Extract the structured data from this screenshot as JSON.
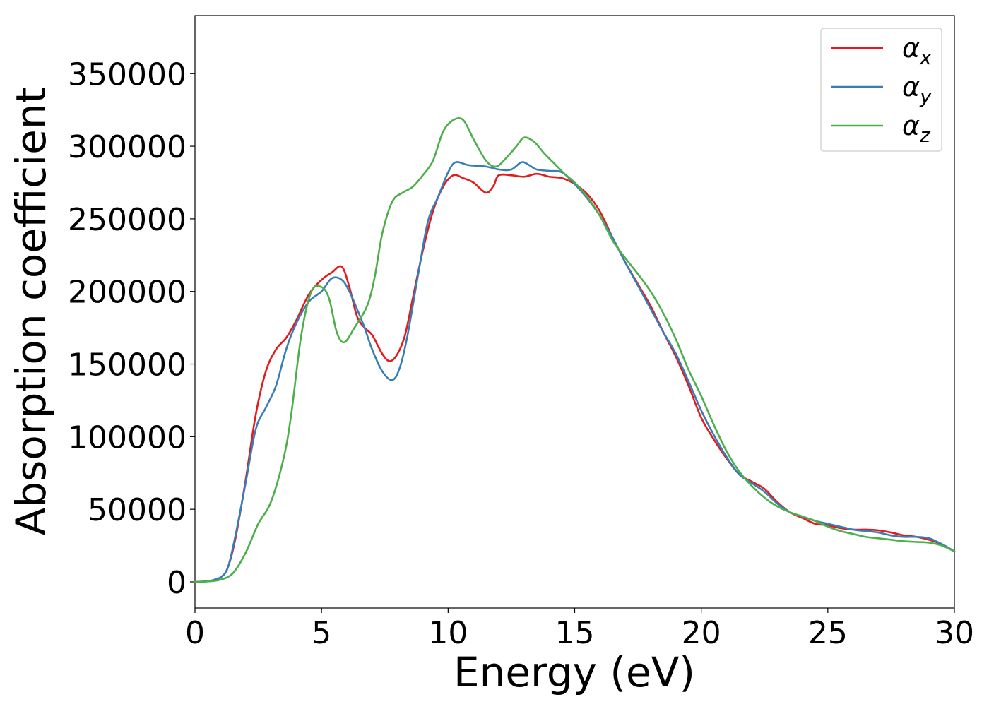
{
  "chart_data": {
    "type": "line",
    "title": "",
    "xlabel": "Energy (eV)",
    "ylabel": "Absorption coefficient",
    "xlim": [
      0,
      30
    ],
    "ylim": [
      -18000,
      390000
    ],
    "xticks": [
      0,
      5,
      10,
      15,
      20,
      25,
      30
    ],
    "yticks": [
      0,
      50000,
      100000,
      150000,
      200000,
      250000,
      300000,
      350000
    ],
    "grid": false,
    "legend": {
      "placement": "top-right"
    },
    "series": [
      {
        "name": "α_x",
        "legend_symbol": "α",
        "legend_sub": "x",
        "color": "#e41a1c",
        "points": [
          [
            0,
            0
          ],
          [
            0.5,
            500
          ],
          [
            1.0,
            3000
          ],
          [
            1.3,
            10000
          ],
          [
            1.6,
            30000
          ],
          [
            2.0,
            70000
          ],
          [
            2.4,
            115000
          ],
          [
            2.8,
            145000
          ],
          [
            3.2,
            160000
          ],
          [
            3.6,
            168000
          ],
          [
            4.0,
            180000
          ],
          [
            4.5,
            198000
          ],
          [
            5.0,
            208000
          ],
          [
            5.4,
            213000
          ],
          [
            5.8,
            217000
          ],
          [
            6.1,
            203000
          ],
          [
            6.4,
            183000
          ],
          [
            6.7,
            175000
          ],
          [
            7.0,
            170000
          ],
          [
            7.4,
            157000
          ],
          [
            7.7,
            152000
          ],
          [
            8.0,
            157000
          ],
          [
            8.3,
            170000
          ],
          [
            8.6,
            195000
          ],
          [
            9.0,
            228000
          ],
          [
            9.4,
            255000
          ],
          [
            9.8,
            272000
          ],
          [
            10.2,
            280000
          ],
          [
            10.6,
            278000
          ],
          [
            11.0,
            275000
          ],
          [
            11.5,
            268000
          ],
          [
            11.8,
            273000
          ],
          [
            12.0,
            280000
          ],
          [
            12.5,
            280000
          ],
          [
            13.0,
            279000
          ],
          [
            13.5,
            281000
          ],
          [
            14.0,
            279000
          ],
          [
            14.5,
            278000
          ],
          [
            15.0,
            274000
          ],
          [
            15.5,
            267000
          ],
          [
            16.0,
            255000
          ],
          [
            16.5,
            237000
          ],
          [
            17.0,
            220000
          ],
          [
            17.5,
            205000
          ],
          [
            18.0,
            190000
          ],
          [
            18.5,
            172000
          ],
          [
            19.0,
            155000
          ],
          [
            19.5,
            135000
          ],
          [
            20.0,
            113000
          ],
          [
            20.5,
            98000
          ],
          [
            21.0,
            85000
          ],
          [
            21.5,
            74000
          ],
          [
            22.0,
            69000
          ],
          [
            22.5,
            64000
          ],
          [
            23.0,
            55000
          ],
          [
            23.5,
            48000
          ],
          [
            24.0,
            44000
          ],
          [
            24.5,
            40000
          ],
          [
            25.0,
            39000
          ],
          [
            25.5,
            37000
          ],
          [
            26.0,
            36000
          ],
          [
            26.5,
            36000
          ],
          [
            27.0,
            35500
          ],
          [
            27.5,
            34000
          ],
          [
            28.0,
            32000
          ],
          [
            28.5,
            31000
          ],
          [
            29.0,
            29000
          ],
          [
            29.5,
            26000
          ],
          [
            30.0,
            21000
          ]
        ]
      },
      {
        "name": "α_y",
        "legend_symbol": "α",
        "legend_sub": "y",
        "color": "#377eb8",
        "points": [
          [
            0,
            0
          ],
          [
            0.5,
            500
          ],
          [
            1.0,
            3000
          ],
          [
            1.3,
            10000
          ],
          [
            1.6,
            32000
          ],
          [
            2.0,
            68000
          ],
          [
            2.4,
            105000
          ],
          [
            2.8,
            120000
          ],
          [
            3.2,
            135000
          ],
          [
            3.6,
            160000
          ],
          [
            4.0,
            178000
          ],
          [
            4.5,
            193000
          ],
          [
            5.0,
            200000
          ],
          [
            5.4,
            209000
          ],
          [
            5.8,
            208000
          ],
          [
            6.1,
            200000
          ],
          [
            6.4,
            188000
          ],
          [
            6.7,
            175000
          ],
          [
            7.0,
            160000
          ],
          [
            7.4,
            145000
          ],
          [
            7.8,
            139000
          ],
          [
            8.1,
            148000
          ],
          [
            8.4,
            170000
          ],
          [
            8.8,
            210000
          ],
          [
            9.2,
            248000
          ],
          [
            9.6,
            265000
          ],
          [
            10.0,
            282000
          ],
          [
            10.3,
            289000
          ],
          [
            10.8,
            287000
          ],
          [
            11.5,
            286000
          ],
          [
            12.0,
            284000
          ],
          [
            12.5,
            284000
          ],
          [
            12.9,
            289000
          ],
          [
            13.2,
            287000
          ],
          [
            13.5,
            284000
          ],
          [
            14.0,
            283000
          ],
          [
            14.5,
            282000
          ],
          [
            15.0,
            274000
          ],
          [
            15.5,
            264000
          ],
          [
            16.0,
            252000
          ],
          [
            16.5,
            237000
          ],
          [
            17.0,
            220000
          ],
          [
            17.5,
            204000
          ],
          [
            18.0,
            188000
          ],
          [
            18.5,
            172000
          ],
          [
            19.0,
            157000
          ],
          [
            19.5,
            138000
          ],
          [
            20.0,
            118000
          ],
          [
            20.5,
            101000
          ],
          [
            21.0,
            86000
          ],
          [
            21.5,
            74000
          ],
          [
            22.0,
            68000
          ],
          [
            22.5,
            62000
          ],
          [
            23.0,
            54000
          ],
          [
            23.5,
            48000
          ],
          [
            24.0,
            45000
          ],
          [
            24.5,
            42000
          ],
          [
            25.0,
            40000
          ],
          [
            25.5,
            38000
          ],
          [
            26.0,
            36000
          ],
          [
            26.5,
            35000
          ],
          [
            27.0,
            34000
          ],
          [
            27.5,
            32000
          ],
          [
            28.0,
            31000
          ],
          [
            28.5,
            31000
          ],
          [
            29.0,
            30000
          ],
          [
            29.5,
            26000
          ],
          [
            30.0,
            21000
          ]
        ]
      },
      {
        "name": "α_z",
        "legend_symbol": "α",
        "legend_sub": "z",
        "color": "#4daf4a",
        "points": [
          [
            0,
            0
          ],
          [
            0.5,
            300
          ],
          [
            1.0,
            1500
          ],
          [
            1.5,
            6000
          ],
          [
            2.0,
            20000
          ],
          [
            2.5,
            40000
          ],
          [
            3.0,
            55000
          ],
          [
            3.5,
            85000
          ],
          [
            3.8,
            115000
          ],
          [
            4.2,
            170000
          ],
          [
            4.6,
            200000
          ],
          [
            5.0,
            203000
          ],
          [
            5.3,
            195000
          ],
          [
            5.6,
            172000
          ],
          [
            5.9,
            165000
          ],
          [
            6.3,
            175000
          ],
          [
            6.8,
            190000
          ],
          [
            7.1,
            210000
          ],
          [
            7.4,
            240000
          ],
          [
            7.8,
            262000
          ],
          [
            8.2,
            268000
          ],
          [
            8.6,
            272000
          ],
          [
            9.0,
            280000
          ],
          [
            9.4,
            290000
          ],
          [
            9.8,
            310000
          ],
          [
            10.2,
            318000
          ],
          [
            10.6,
            318000
          ],
          [
            11.0,
            305000
          ],
          [
            11.5,
            290000
          ],
          [
            11.9,
            286000
          ],
          [
            12.3,
            292000
          ],
          [
            12.7,
            300000
          ],
          [
            13.0,
            306000
          ],
          [
            13.4,
            303000
          ],
          [
            13.8,
            295000
          ],
          [
            14.2,
            288000
          ],
          [
            14.6,
            281000
          ],
          [
            15.0,
            275000
          ],
          [
            15.5,
            265000
          ],
          [
            16.0,
            252000
          ],
          [
            16.5,
            235000
          ],
          [
            17.0,
            223000
          ],
          [
            17.5,
            212000
          ],
          [
            18.0,
            200000
          ],
          [
            18.5,
            185000
          ],
          [
            19.0,
            167000
          ],
          [
            19.5,
            146000
          ],
          [
            20.0,
            128000
          ],
          [
            20.5,
            108000
          ],
          [
            21.0,
            90000
          ],
          [
            21.5,
            76000
          ],
          [
            22.0,
            66000
          ],
          [
            22.5,
            58000
          ],
          [
            23.0,
            52000
          ],
          [
            23.5,
            48000
          ],
          [
            24.0,
            45000
          ],
          [
            24.5,
            42000
          ],
          [
            25.0,
            38000
          ],
          [
            25.5,
            35000
          ],
          [
            26.0,
            33000
          ],
          [
            26.5,
            31000
          ],
          [
            27.0,
            30000
          ],
          [
            27.5,
            29000
          ],
          [
            28.0,
            28000
          ],
          [
            28.5,
            27500
          ],
          [
            29.0,
            27000
          ],
          [
            29.5,
            25000
          ],
          [
            30.0,
            21000
          ]
        ]
      }
    ]
  }
}
